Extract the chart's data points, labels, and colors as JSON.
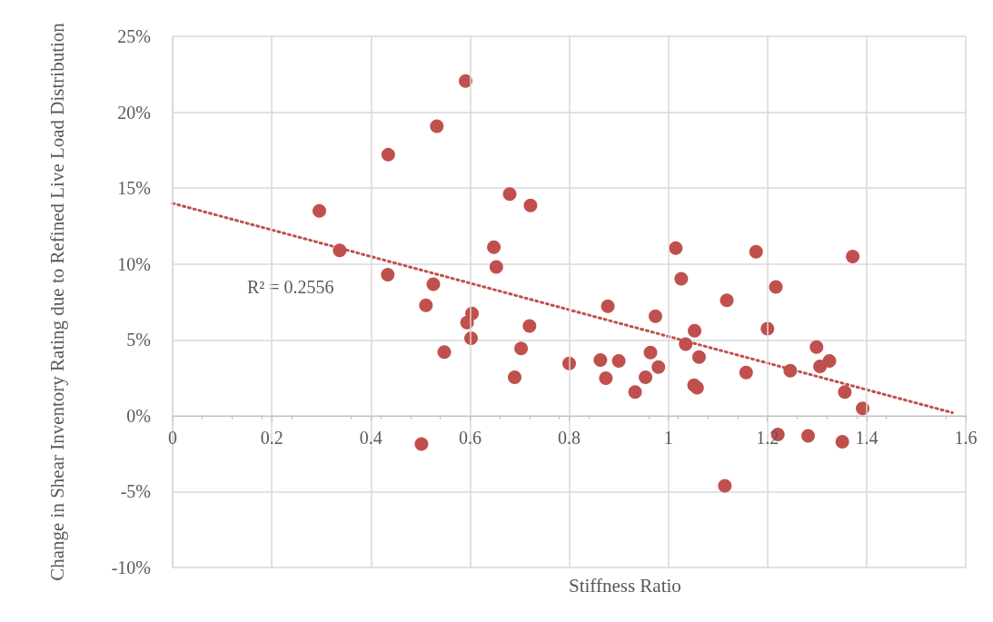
{
  "chart_data": {
    "type": "scatter",
    "xlabel": "Stiffness Ratio",
    "ylabel": "Change in Shear Inventory Rating due to Refined Live Load Distribution",
    "xlim": [
      0,
      1.6
    ],
    "xticks": [
      0,
      0.2,
      0.4,
      0.6,
      0.8,
      1,
      1.2,
      1.4,
      1.6
    ],
    "ylim": [
      -10,
      25
    ],
    "yticks": [
      {
        "value": -10,
        "label": "-10%"
      },
      {
        "value": -5,
        "label": "-5%"
      },
      {
        "value": 0,
        "label": "0%"
      },
      {
        "value": 5,
        "label": "5%"
      },
      {
        "value": 10,
        "label": "10%"
      },
      {
        "value": 15,
        "label": "15%"
      },
      {
        "value": 20,
        "label": "20%"
      },
      {
        "value": 25,
        "label": "25%"
      }
    ],
    "grid": true,
    "marker": "circle",
    "annotations": [
      "R² = 0.2556"
    ],
    "series": [
      {
        "type": "scatter",
        "color": "#c0504d",
        "x": [
          0.591,
          0.533,
          0.435,
          0.296,
          0.337,
          0.68,
          0.722,
          0.648,
          0.653,
          0.434,
          0.526,
          0.511,
          0.604,
          0.594,
          0.72,
          0.602,
          0.548,
          0.703,
          0.69,
          0.502,
          0.8,
          1.015,
          1.177,
          1.372,
          1.026,
          1.217,
          1.118,
          0.878,
          0.974,
          1.2,
          1.053,
          1.035,
          1.299,
          0.964,
          1.062,
          1.325,
          0.863,
          0.9,
          0.98,
          1.306,
          1.157,
          1.246,
          0.874,
          0.954,
          1.052,
          1.058,
          0.933,
          1.356,
          1.392,
          1.221,
          1.282,
          1.351,
          1.114
        ],
        "values": [
          22.05,
          19.08,
          17.2,
          13.5,
          10.9,
          14.6,
          13.85,
          11.1,
          9.8,
          9.3,
          8.67,
          7.28,
          6.74,
          6.14,
          5.92,
          5.1,
          4.2,
          4.43,
          2.53,
          -1.87,
          3.45,
          11.05,
          10.8,
          10.49,
          9.03,
          8.49,
          7.61,
          7.22,
          6.56,
          5.74,
          5.6,
          4.72,
          4.53,
          4.17,
          3.87,
          3.61,
          3.67,
          3.61,
          3.21,
          3.25,
          2.85,
          2.97,
          2.47,
          2.53,
          2.01,
          1.85,
          1.56,
          1.56,
          0.48,
          -1.24,
          -1.33,
          -1.71,
          -4.62
        ]
      },
      {
        "type": "line",
        "color": "#c0504d",
        "line_style": "dotted",
        "marker": "none",
        "x": [
          0,
          1.573
        ],
        "values": [
          14.0,
          0.2
        ]
      }
    ]
  }
}
